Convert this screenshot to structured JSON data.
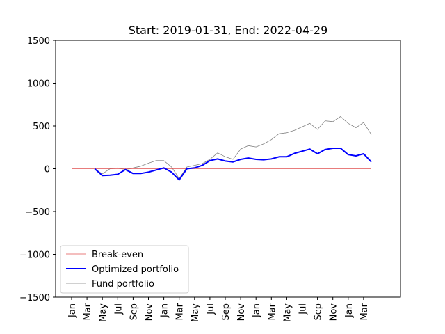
{
  "chart_data": {
    "type": "line",
    "title": "Start: 2019-01-31, End: 2022-04-29",
    "xlabel": "",
    "ylabel": "",
    "ylim": [
      -1500,
      1500
    ],
    "yticks": [
      -1500,
      -1000,
      -500,
      0,
      500,
      1000,
      1500
    ],
    "ytick_labels": [
      "−1500",
      "−1000",
      "−500",
      "0",
      "500",
      "1000",
      "1500"
    ],
    "xtick_labels": [
      "Jan",
      "Mar",
      "May",
      "Jul",
      "Sep",
      "Nov",
      "Jan",
      "Mar",
      "May",
      "Jul",
      "Sep",
      "Nov",
      "Jan",
      "Mar",
      "May",
      "Jul",
      "Sep",
      "Nov",
      "Jan",
      "Mar"
    ],
    "grid": false,
    "legend_position": "lower-left",
    "series": [
      {
        "name": "Break-even",
        "color": "#e05050",
        "x": [
          "2019-01",
          "2022-04"
        ],
        "values": [
          0,
          0
        ]
      },
      {
        "name": "Optimized portfolio",
        "color": "#0000ff",
        "x": [
          "2019-04",
          "2019-05",
          "2019-06",
          "2019-07",
          "2019-08",
          "2019-09",
          "2019-10",
          "2019-11",
          "2019-12",
          "2020-01",
          "2020-02",
          "2020-03",
          "2020-04",
          "2020-05",
          "2020-06",
          "2020-07",
          "2020-08",
          "2020-09",
          "2020-10",
          "2020-11",
          "2020-12",
          "2021-01",
          "2021-02",
          "2021-03",
          "2021-04",
          "2021-05",
          "2021-06",
          "2021-07",
          "2021-08",
          "2021-09",
          "2021-10",
          "2021-11",
          "2021-12",
          "2022-01",
          "2022-02",
          "2022-03",
          "2022-04"
        ],
        "values": [
          0,
          -80,
          -75,
          -65,
          -10,
          -55,
          -55,
          -40,
          -15,
          10,
          -40,
          -130,
          0,
          10,
          40,
          95,
          115,
          90,
          80,
          110,
          125,
          110,
          105,
          115,
          140,
          140,
          180,
          205,
          230,
          175,
          225,
          240,
          240,
          165,
          150,
          175,
          80
        ]
      },
      {
        "name": "Fund portfolio",
        "color": "#808080",
        "x": [
          "2019-04",
          "2019-05",
          "2019-06",
          "2019-07",
          "2019-08",
          "2019-09",
          "2019-10",
          "2019-11",
          "2019-12",
          "2020-01",
          "2020-02",
          "2020-03",
          "2020-04",
          "2020-05",
          "2020-06",
          "2020-07",
          "2020-08",
          "2020-09",
          "2020-10",
          "2020-11",
          "2020-12",
          "2021-01",
          "2021-02",
          "2021-03",
          "2021-04",
          "2021-05",
          "2021-06",
          "2021-07",
          "2021-08",
          "2021-09",
          "2021-10",
          "2021-11",
          "2021-12",
          "2022-01",
          "2022-02",
          "2022-03",
          "2022-04"
        ],
        "values": [
          0,
          -60,
          0,
          10,
          -10,
          10,
          30,
          65,
          95,
          95,
          20,
          -115,
          20,
          40,
          60,
          110,
          185,
          140,
          110,
          230,
          270,
          255,
          290,
          340,
          410,
          420,
          450,
          490,
          530,
          460,
          560,
          550,
          610,
          530,
          480,
          540,
          400
        ]
      }
    ]
  }
}
